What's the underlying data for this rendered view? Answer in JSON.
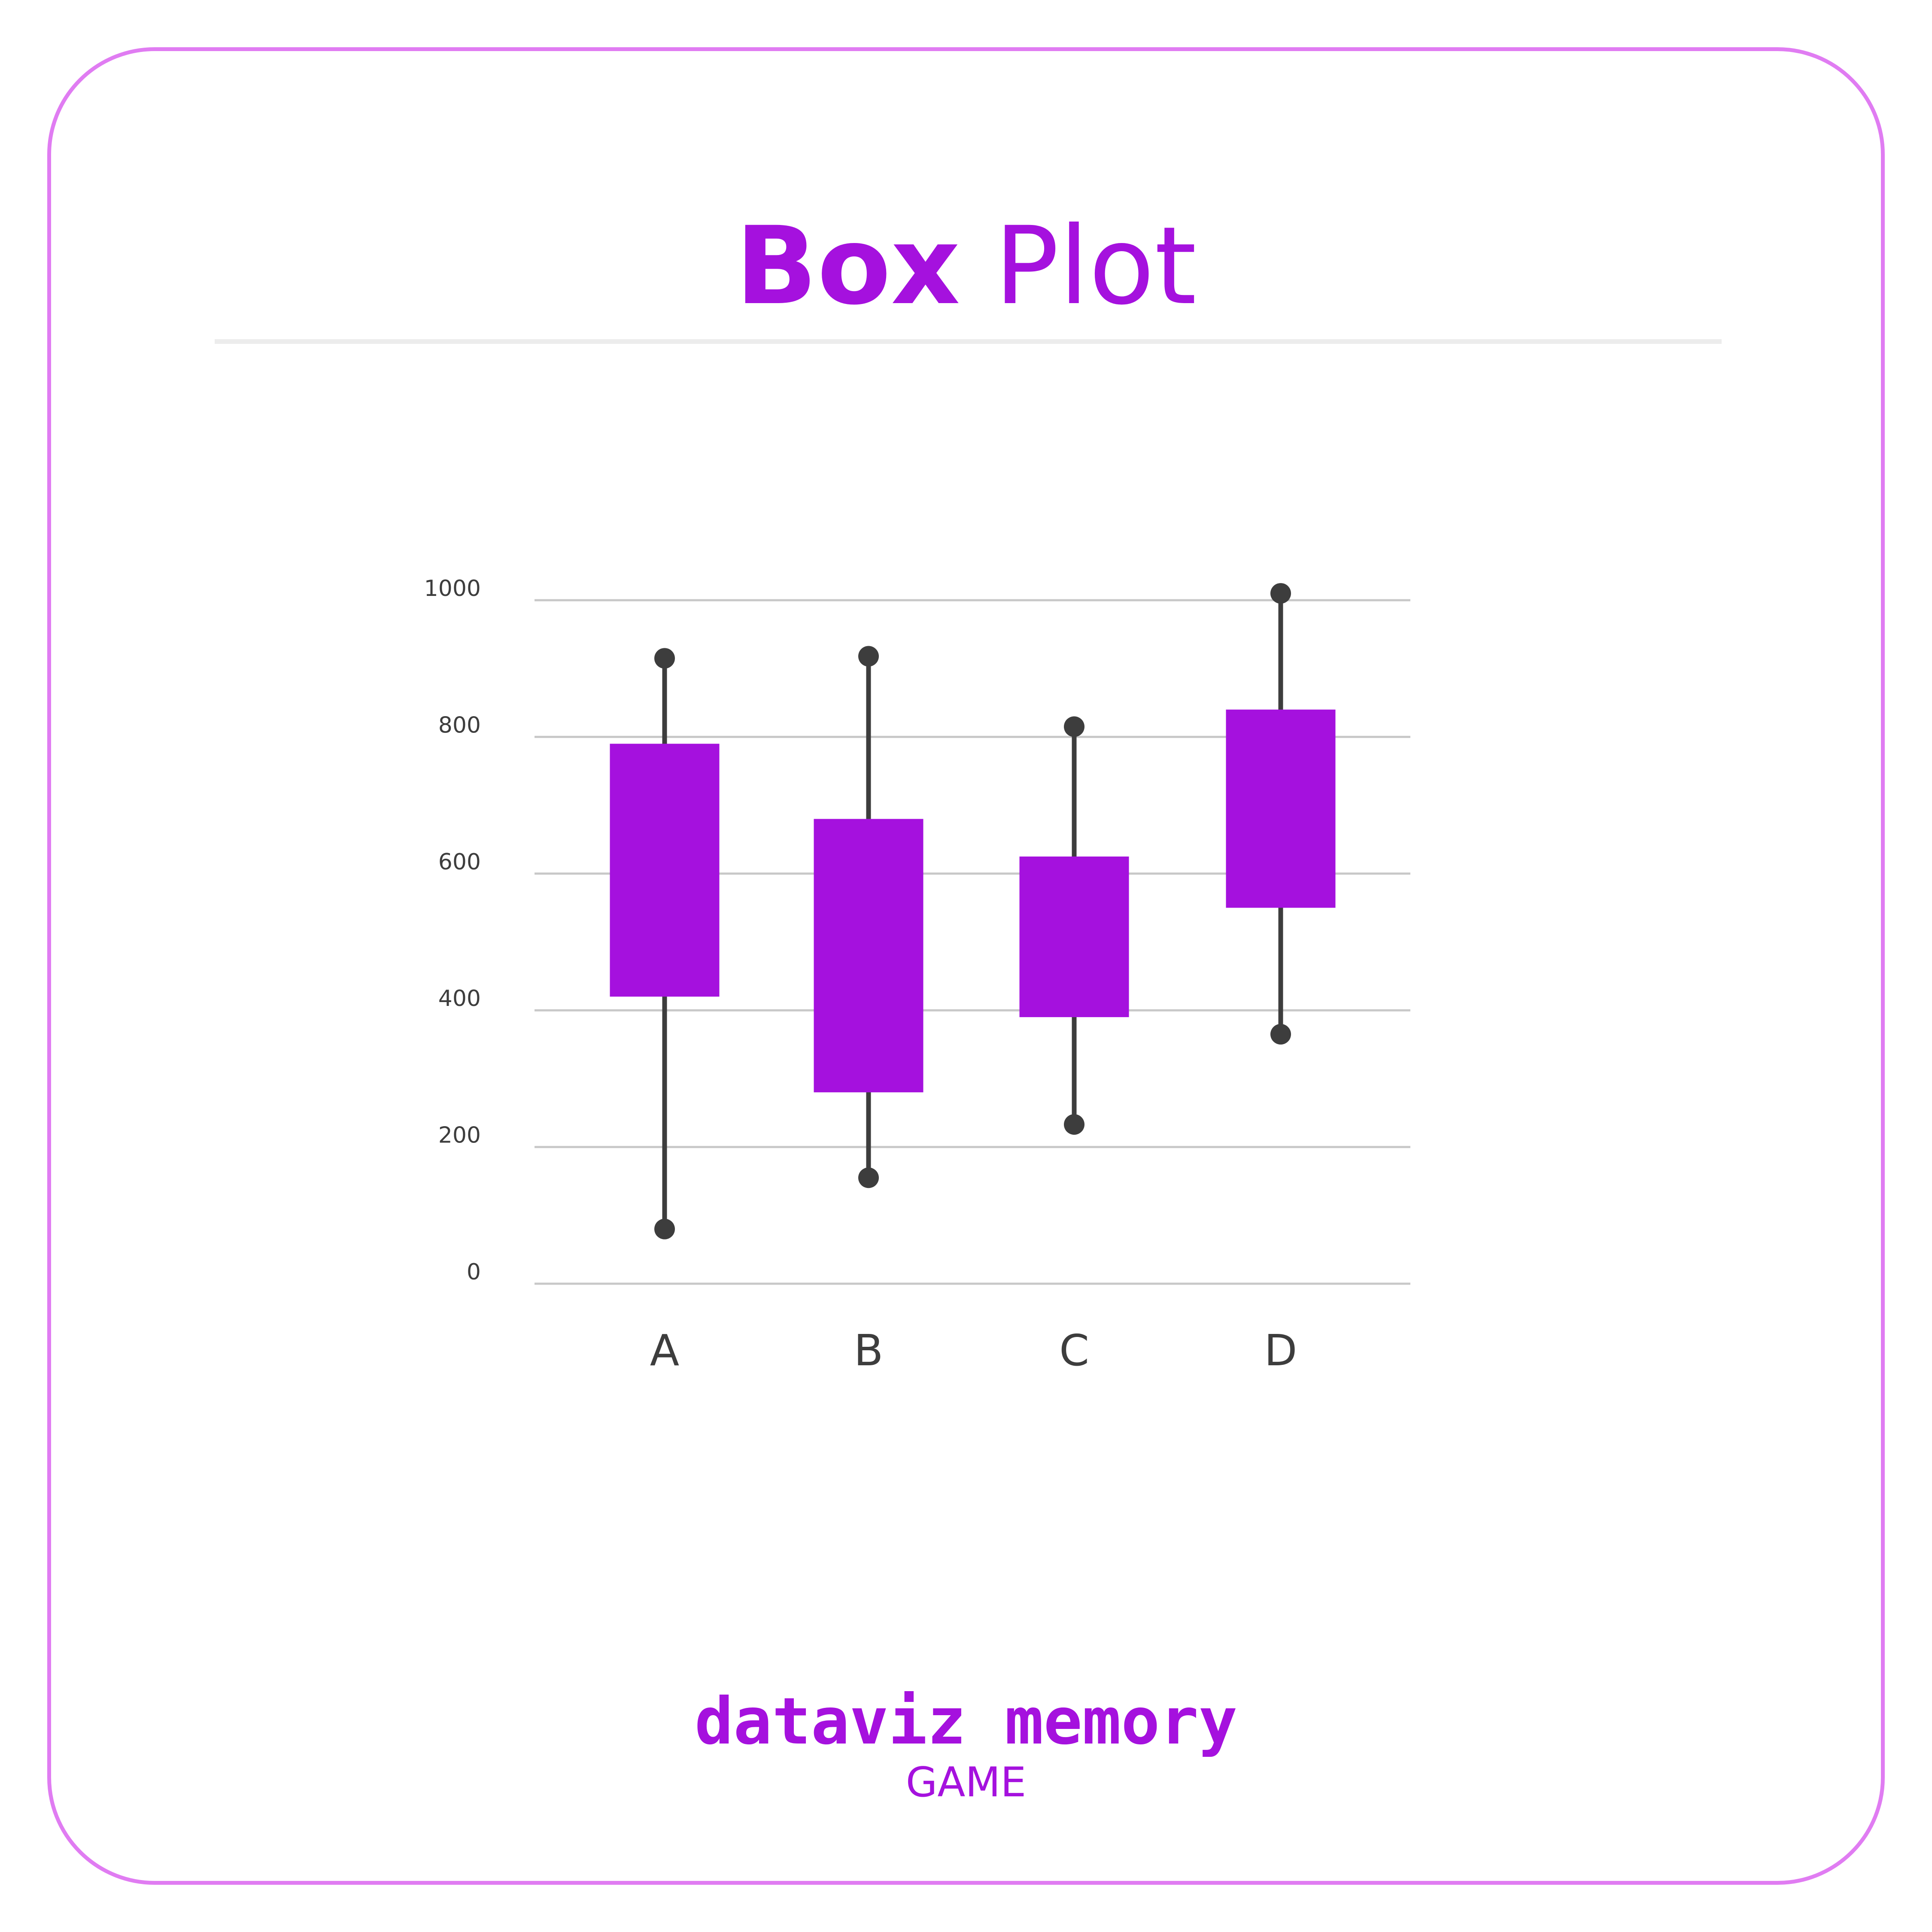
{
  "title": {
    "bold": "Box",
    "light": "Plot"
  },
  "brand": {
    "name": "dataviz memory",
    "subtitle": "GAME"
  },
  "colors": {
    "accent": "#a511de",
    "border": "#e07cf2",
    "whisker": "#3d3d3d",
    "grid": "#c8c8c8",
    "text": "#3d3d3d"
  },
  "chart_data": {
    "type": "box",
    "title": "Box Plot",
    "xlabel": "",
    "ylabel": "",
    "ylim": [
      0,
      1000
    ],
    "yticks": [
      0,
      200,
      400,
      600,
      800,
      1000
    ],
    "grid": true,
    "categories": [
      "A",
      "B",
      "C",
      "D"
    ],
    "boxes": [
      {
        "label": "A",
        "min": 80,
        "q1": 420,
        "q3": 790,
        "max": 915
      },
      {
        "label": "B",
        "min": 155,
        "q1": 280,
        "q3": 680,
        "max": 918
      },
      {
        "label": "C",
        "min": 233,
        "q1": 390,
        "q3": 625,
        "max": 815
      },
      {
        "label": "D",
        "min": 365,
        "q1": 550,
        "q3": 840,
        "max": 1010
      }
    ]
  }
}
